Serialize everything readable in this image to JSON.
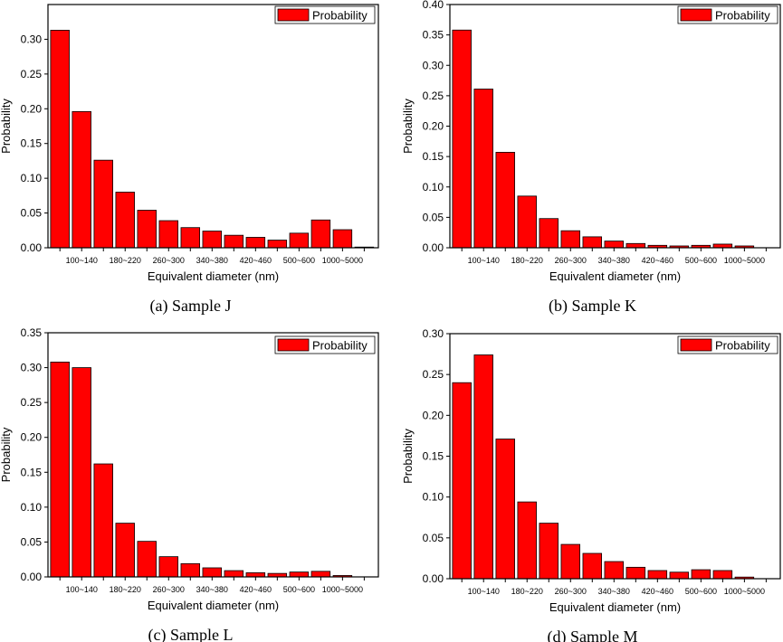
{
  "bar_color": "#ff0000",
  "bar_stroke": "#000000",
  "chart_data": [
    {
      "type": "bar",
      "caption": "(a) Sample J",
      "xlabel": "Equivalent diameter (nm)",
      "ylabel": "Probability",
      "legend": "Probability",
      "legend_position": "top-right",
      "ylim": [
        0,
        0.35
      ],
      "yticks": [
        "0.00",
        "0.05",
        "0.10",
        "0.15",
        "0.20",
        "0.25",
        "0.30"
      ],
      "xtick_labels": [
        "100~140",
        "180~220",
        "260~300",
        "340~380",
        "420~460",
        "500~600",
        "1000~5000"
      ],
      "values": [
        0.313,
        0.196,
        0.126,
        0.08,
        0.054,
        0.039,
        0.029,
        0.024,
        0.018,
        0.015,
        0.011,
        0.021,
        0.04,
        0.026,
        0.001
      ]
    },
    {
      "type": "bar",
      "caption": "(b) Sample K",
      "xlabel": "Equivalent diameter (nm)",
      "ylabel": "Probability",
      "legend": "Probability",
      "legend_position": "top-right",
      "ylim": [
        0,
        0.4
      ],
      "yticks": [
        "0.00",
        "0.05",
        "0.10",
        "0.15",
        "0.20",
        "0.25",
        "0.30",
        "0.35",
        "0.40"
      ],
      "xtick_labels": [
        "100~140",
        "180~220",
        "260~300",
        "340~380",
        "420~460",
        "500~600",
        "1000~5000"
      ],
      "values": [
        0.358,
        0.261,
        0.157,
        0.085,
        0.048,
        0.028,
        0.018,
        0.011,
        0.007,
        0.004,
        0.003,
        0.004,
        0.006,
        0.003,
        0.0
      ]
    },
    {
      "type": "bar",
      "caption": "(c) Sample L",
      "xlabel": "Equivalent diameter (nm)",
      "ylabel": "Probability",
      "legend": "Probability",
      "legend_position": "top-right",
      "ylim": [
        0,
        0.35
      ],
      "yticks": [
        "0.00",
        "0.05",
        "0.10",
        "0.15",
        "0.20",
        "0.25",
        "0.30",
        "0.35"
      ],
      "xtick_labels": [
        "100~140",
        "180~220",
        "260~300",
        "340~380",
        "420~460",
        "500~600",
        "1000~5000"
      ],
      "values": [
        0.308,
        0.3,
        0.162,
        0.077,
        0.051,
        0.029,
        0.019,
        0.013,
        0.009,
        0.006,
        0.005,
        0.007,
        0.008,
        0.002,
        0.0
      ]
    },
    {
      "type": "bar",
      "caption": "(d) Sample M",
      "xlabel": "Equivalent diameter (nm)",
      "ylabel": "Probability",
      "legend": "Probability",
      "legend_position": "top-right",
      "ylim": [
        0,
        0.3
      ],
      "yticks": [
        "0.00",
        "0.05",
        "0.10",
        "0.15",
        "0.20",
        "0.25",
        "0.30"
      ],
      "xtick_labels": [
        "100~140",
        "180~220",
        "260~300",
        "340~380",
        "420~460",
        "500~600",
        "1000~5000"
      ],
      "values": [
        0.24,
        0.274,
        0.171,
        0.094,
        0.068,
        0.042,
        0.031,
        0.021,
        0.014,
        0.01,
        0.008,
        0.011,
        0.01,
        0.002,
        0.0
      ]
    }
  ]
}
